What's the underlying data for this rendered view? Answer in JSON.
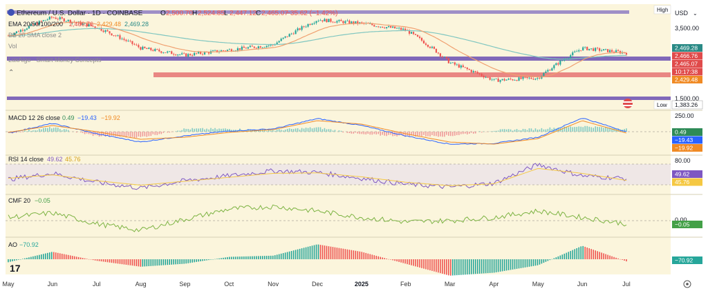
{
  "header": {
    "symbol": "Ethereum / U.S. Dollar · 1D · COINBASE",
    "o_label": "O",
    "o": "2,500.70",
    "h_label": "H",
    "h": "2,524.85",
    "l_label": "L",
    "l": "2,447.12",
    "c_label": "C",
    "c": "2,465.07",
    "change": "−35.62 (−1.42%)"
  },
  "overlay_legends": {
    "ema": {
      "label": "EMA 20/50/100/200",
      "v1": "2,466.76",
      "v2": "2,429.48",
      "v3": "2,469.28"
    },
    "bb": {
      "label": "BB 20 SMA close 2"
    },
    "vol": {
      "label": "Vol"
    },
    "smc": {
      "label": "LuxAlgo - Smart Money Concepts"
    }
  },
  "price_axis": {
    "high_label": "High",
    "currency": "USD",
    "ticks": [
      "3,500.00",
      "1,500.00"
    ],
    "low_label": "Low",
    "low_value": "1,383.26",
    "tags": [
      {
        "value": "2,469.28",
        "color": "#2a8a86",
        "text_color": "#ffffff"
      },
      {
        "value": "2,466.76",
        "color": "#e04b4b",
        "text_color": "#ffffff"
      },
      {
        "value": "2,465.07",
        "color": "#e04b4b",
        "text_color": "#ffffff"
      },
      {
        "value": "10:17:38",
        "color": "#e04b4b",
        "text_color": "#ffffff"
      },
      {
        "value": "2,429.48",
        "color": "#f08a24",
        "text_color": "#ffffff"
      }
    ]
  },
  "macd": {
    "legend": "MACD 12 26 close",
    "v1": "0.49",
    "v2": "−19.43",
    "v3": "−19.92",
    "axis_tick": "250.00",
    "tags": [
      {
        "value": "0.49",
        "color": "#2e8b57"
      },
      {
        "value": "−19.43",
        "color": "#2962ff"
      },
      {
        "value": "−19.92",
        "color": "#f08a24"
      }
    ]
  },
  "rsi": {
    "legend": "RSI 14 close",
    "v1": "49.62",
    "v2": "45.76",
    "axis_tick": "80.00",
    "tags": [
      {
        "value": "49.62",
        "color": "#7e57c2"
      },
      {
        "value": "45.76",
        "color": "#f5c842"
      }
    ]
  },
  "cmf": {
    "legend": "CMF 20",
    "v1": "−0.05",
    "axis_tick": "0.00",
    "tags": [
      {
        "value": "−0.05",
        "color": "#43a047"
      }
    ]
  },
  "ao": {
    "legend": "AO",
    "v1": "−70.92",
    "tags": [
      {
        "value": "−70.92",
        "color": "#26a69a"
      }
    ]
  },
  "time_axis": [
    "May",
    "Jun",
    "Jul",
    "Aug",
    "Sep",
    "Oct",
    "Nov",
    "Dec",
    "2025",
    "Feb",
    "Mar",
    "Apr",
    "May",
    "Jun",
    "Jul"
  ],
  "colors": {
    "panel_bg": "#fbf5dc",
    "up": "#26a69a",
    "down": "#ef5350",
    "resistance_purple": "#8e7cc3",
    "support_red": "#e57373"
  },
  "chart_data": [
    {
      "type": "line",
      "title": "Ethereum / U.S. Dollar · 1D · COINBASE",
      "x": [
        "May",
        "Jun",
        "Jul",
        "Aug",
        "Sep",
        "Oct",
        "Nov",
        "Dec",
        "2025",
        "Feb",
        "Mar",
        "Apr",
        "May",
        "Jun",
        "Jul"
      ],
      "series": [
        {
          "name": "Close",
          "values": [
            3000,
            3700,
            3300,
            2600,
            2400,
            2550,
            2700,
            3600,
            3450,
            3200,
            2200,
            1800,
            1850,
            2600,
            2465
          ]
        }
      ],
      "ylim": [
        1383.26,
        4100
      ],
      "scale": "log",
      "grid": false
    },
    {
      "type": "line",
      "title": "MACD 12 26 close",
      "x": [
        "May",
        "Jun",
        "Jul",
        "Aug",
        "Sep",
        "Oct",
        "Nov",
        "Dec",
        "2025",
        "Feb",
        "Mar",
        "Apr",
        "May",
        "Jun",
        "Jul"
      ],
      "series": [
        {
          "name": "MACD",
          "values": [
            -20,
            120,
            -30,
            -150,
            -60,
            10,
            40,
            190,
            90,
            -60,
            -180,
            -170,
            -80,
            200,
            0.49
          ]
        },
        {
          "name": "Signal",
          "values": [
            -10,
            90,
            0,
            -110,
            -80,
            -10,
            30,
            160,
            110,
            -30,
            -150,
            -180,
            -100,
            160,
            -19.43
          ]
        }
      ]
    },
    {
      "type": "line",
      "title": "RSI 14 close",
      "x": [
        "May",
        "Jun",
        "Jul",
        "Aug",
        "Sep",
        "Oct",
        "Nov",
        "Dec",
        "2025",
        "Feb",
        "Mar",
        "Apr",
        "May",
        "Jun",
        "Jul"
      ],
      "series": [
        {
          "name": "RSI",
          "values": [
            48,
            60,
            42,
            30,
            45,
            55,
            65,
            62,
            50,
            38,
            32,
            40,
            78,
            55,
            49.62
          ]
        },
        {
          "name": "RSI MA",
          "values": [
            50,
            57,
            45,
            36,
            44,
            52,
            60,
            61,
            53,
            42,
            35,
            39,
            70,
            60,
            45.76
          ]
        }
      ],
      "ylim": [
        20,
        90
      ]
    },
    {
      "type": "line",
      "title": "CMF 20",
      "x": [
        "May",
        "Jun",
        "Jul",
        "Aug",
        "Sep",
        "Oct",
        "Nov",
        "Dec",
        "2025",
        "Feb",
        "Mar",
        "Apr",
        "May",
        "Jun",
        "Jul"
      ],
      "series": [
        {
          "name": "CMF",
          "values": [
            0.05,
            0.12,
            -0.05,
            -0.15,
            0.02,
            0.18,
            0.22,
            0.15,
            0.05,
            -0.02,
            0.0,
            0.05,
            0.15,
            0.05,
            -0.05
          ]
        }
      ],
      "ylim": [
        -0.3,
        0.3
      ]
    },
    {
      "type": "bar",
      "title": "AO",
      "x": [
        "May",
        "Jun",
        "Jul",
        "Aug",
        "Sep",
        "Oct",
        "Nov",
        "Dec",
        "2025",
        "Feb",
        "Mar",
        "Apr",
        "May",
        "Jun",
        "Jul"
      ],
      "series": [
        {
          "name": "AO",
          "values": [
            -100,
            250,
            -50,
            -250,
            -150,
            80,
            120,
            500,
            250,
            -150,
            -550,
            -450,
            -200,
            450,
            -70.92
          ]
        }
      ]
    }
  ]
}
